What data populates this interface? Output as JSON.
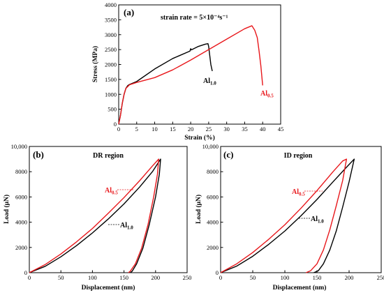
{
  "chart_data": [
    {
      "type": "line",
      "panel_label": "(a)",
      "annotation": "strain rate = 5×10⁻⁴s⁻¹",
      "xlabel": "Strain (%)",
      "ylabel": "Stress (MPa)",
      "xlim": [
        0,
        45
      ],
      "ylim": [
        0,
        4000
      ],
      "xticks": [
        0,
        5,
        10,
        15,
        20,
        25,
        30,
        35,
        40,
        45
      ],
      "yticks": [
        0,
        500,
        1000,
        1500,
        2000,
        2500,
        3000,
        3500,
        4000
      ],
      "series": [
        {
          "name": "Al1.0",
          "label_base": "Al",
          "label_sub": "1.0",
          "color": "#000000",
          "x": [
            0,
            0.5,
            1,
            1.5,
            2,
            2.5,
            3,
            4,
            5,
            10,
            15,
            19.8,
            20,
            20.2,
            22,
            24,
            24.8,
            25,
            25.3,
            25.6,
            26
          ],
          "y": [
            0,
            300,
            700,
            1000,
            1200,
            1290,
            1330,
            1380,
            1430,
            1850,
            2200,
            2450,
            2530,
            2490,
            2600,
            2680,
            2700,
            2600,
            2300,
            2000,
            1780
          ]
        },
        {
          "name": "Al0.5",
          "label_base": "Al",
          "label_sub": "0.5",
          "color": "#e8171b",
          "x": [
            0,
            0.5,
            1,
            1.5,
            2,
            3,
            5,
            10,
            15,
            20,
            25,
            30,
            35,
            37,
            37.8,
            38.5,
            39,
            39.5,
            40
          ],
          "y": [
            0,
            300,
            700,
            1000,
            1200,
            1320,
            1400,
            1560,
            1820,
            2150,
            2500,
            2850,
            3200,
            3300,
            3150,
            2900,
            2450,
            1950,
            1300
          ]
        }
      ]
    },
    {
      "type": "line",
      "panel_label": "(b)",
      "annotation": "DR region",
      "xlabel": "Displacement (nm)",
      "ylabel": "Load (μN)",
      "xlim": [
        0,
        250
      ],
      "ylim": [
        0,
        10000
      ],
      "xticks": [
        0,
        50,
        100,
        150,
        200,
        250
      ],
      "yticks": [
        0,
        2000,
        4000,
        6000,
        8000,
        10000
      ],
      "ytick_labels": [
        "0",
        "2000",
        "4000",
        "6000",
        "8000",
        "10,000"
      ],
      "series": [
        {
          "name": "Al1.0",
          "label_base": "Al",
          "label_sub": "1.0",
          "color": "#000000",
          "x": [
            0,
            25,
            50,
            75,
            100,
            125,
            150,
            175,
            195,
            208,
            206,
            200,
            190,
            180,
            170,
            163,
            160
          ],
          "y": [
            0,
            500,
            1260,
            2150,
            3150,
            4250,
            5450,
            6800,
            8000,
            9000,
            7800,
            6000,
            3800,
            1950,
            700,
            120,
            0
          ]
        },
        {
          "name": "Al0.5",
          "label_base": "Al",
          "label_sub": "0.5",
          "color": "#e8171b",
          "x": [
            0,
            25,
            50,
            75,
            100,
            125,
            150,
            175,
            195,
            205,
            203,
            197,
            188,
            178,
            168,
            160,
            157
          ],
          "y": [
            0,
            640,
            1480,
            2450,
            3500,
            4700,
            5950,
            7300,
            8450,
            9000,
            7800,
            6000,
            3800,
            1950,
            700,
            120,
            0
          ]
        }
      ]
    },
    {
      "type": "line",
      "panel_label": "(c)",
      "annotation": "ID region",
      "xlabel": "Displacement (nm)",
      "ylabel": "Load (μN)",
      "xlim": [
        0,
        250
      ],
      "ylim": [
        0,
        10000
      ],
      "xticks": [
        0,
        50,
        100,
        150,
        200,
        250
      ],
      "yticks": [
        0,
        2000,
        4000,
        6000,
        8000,
        10000
      ],
      "ytick_labels": [
        "0",
        "2000",
        "4000",
        "6000",
        "8000",
        "10,000"
      ],
      "series": [
        {
          "name": "Al1.0",
          "label_base": "Al",
          "label_sub": "1.0",
          "color": "#000000",
          "x": [
            0,
            25,
            50,
            75,
            100,
            125,
            150,
            175,
            195,
            208,
            200,
            190,
            180,
            170,
            160,
            152,
            145
          ],
          "y": [
            0,
            520,
            1300,
            2250,
            3300,
            4500,
            5800,
            7200,
            8300,
            9000,
            7200,
            5200,
            3300,
            1800,
            700,
            150,
            0
          ]
        },
        {
          "name": "Al0.5",
          "label_base": "Al",
          "label_sub": "0.5",
          "color": "#e8171b",
          "x": [
            0,
            25,
            50,
            75,
            100,
            125,
            150,
            175,
            190,
            196,
            190,
            180,
            170,
            160,
            150,
            140,
            133
          ],
          "y": [
            0,
            700,
            1600,
            2650,
            3800,
            5100,
            6500,
            8000,
            8850,
            9000,
            7300,
            5300,
            3400,
            1800,
            700,
            150,
            0
          ]
        }
      ]
    }
  ]
}
